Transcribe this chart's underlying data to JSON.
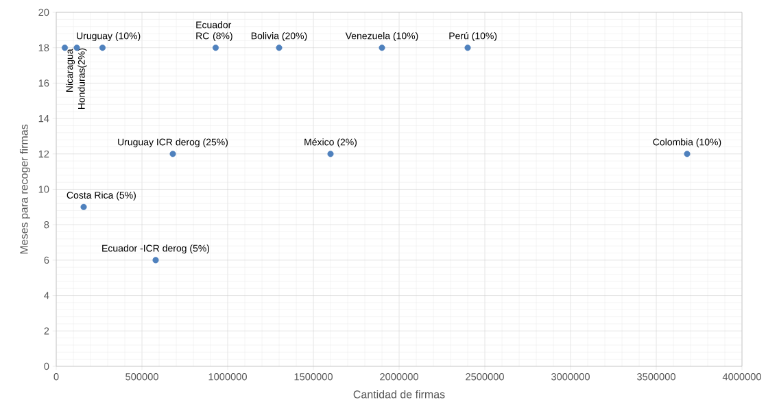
{
  "chart_data": {
    "type": "scatter",
    "xlabel": "Cantidad de firmas",
    "ylabel": "Meses para recoger firmas",
    "x": [
      50000,
      120000,
      270000,
      930000,
      1300000,
      1900000,
      2400000,
      680000,
      1600000,
      3680000,
      160000,
      580000
    ],
    "values": [
      18,
      18,
      18,
      18,
      18,
      18,
      18,
      12,
      12,
      12,
      9,
      6
    ],
    "color": "#4f81bd",
    "marker": "circle",
    "xlim": [
      0,
      4000000
    ],
    "ylim": [
      0,
      20
    ],
    "xticks": [
      0,
      500000,
      1000000,
      1500000,
      2000000,
      2500000,
      3000000,
      3500000,
      4000000
    ],
    "yticks": [
      0,
      2,
      4,
      6,
      8,
      10,
      12,
      14,
      16,
      18,
      20
    ],
    "grid": true,
    "annotations": [
      {
        "text": "Nicaragua",
        "x": 50000,
        "y": 18
      },
      {
        "text": "Honduras(2%)",
        "x": 120000,
        "y": 18
      },
      {
        "text": "Uruguay (10%)",
        "x": 270000,
        "y": 18
      },
      {
        "text": "Ecuador RC (8%)",
        "x": 930000,
        "y": 18
      },
      {
        "text": "Bolivia (20%)",
        "x": 1300000,
        "y": 18
      },
      {
        "text": "Venezuela (10%)",
        "x": 1900000,
        "y": 18
      },
      {
        "text": "Perú (10%)",
        "x": 2400000,
        "y": 18
      },
      {
        "text": "Uruguay ICR derog (25%)",
        "x": 680000,
        "y": 12
      },
      {
        "text": "México (2%)",
        "x": 1600000,
        "y": 12
      },
      {
        "text": "Colombia (10%)",
        "x": 3680000,
        "y": 12
      },
      {
        "text": "Costa Rica (5%)",
        "x": 160000,
        "y": 9
      },
      {
        "text": "Ecuador -ICR derog (5%)",
        "x": 580000,
        "y": 6
      }
    ]
  }
}
